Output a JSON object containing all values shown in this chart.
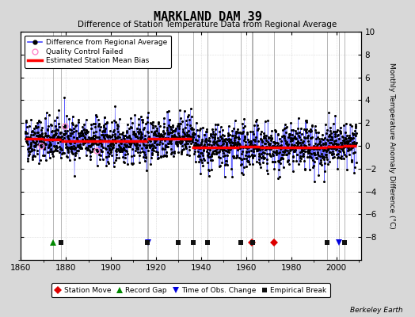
{
  "title": "MARKLAND DAM 39",
  "subtitle": "Difference of Station Temperature Data from Regional Average",
  "ylabel": "Monthly Temperature Anomaly Difference (°C)",
  "xlim": [
    1860,
    2011
  ],
  "ylim": [
    -10,
    10
  ],
  "yticks": [
    -8,
    -6,
    -4,
    -2,
    0,
    2,
    4,
    6,
    8,
    10
  ],
  "xticks": [
    1860,
    1880,
    1900,
    1920,
    1940,
    1960,
    1980,
    2000
  ],
  "background_color": "#d8d8d8",
  "plot_bg_color": "#ffffff",
  "line_color": "#4444ff",
  "marker_color": "#000000",
  "bias_color": "#ff0000",
  "qc_color": "#ff88cc",
  "seed": 42,
  "data_start": 1862.0,
  "data_end": 2009.0,
  "bias_segments": [
    {
      "x_start": 1862,
      "x_end": 1870,
      "bias": 0.65
    },
    {
      "x_start": 1870,
      "x_end": 1878,
      "bias": 0.55
    },
    {
      "x_start": 1878,
      "x_end": 1916,
      "bias": 0.45
    },
    {
      "x_start": 1916,
      "x_end": 1936,
      "bias": 0.65
    },
    {
      "x_start": 1936,
      "x_end": 1957,
      "bias": -0.15
    },
    {
      "x_start": 1957,
      "x_end": 1963,
      "bias": -0.1
    },
    {
      "x_start": 1963,
      "x_end": 1966,
      "bias": -0.1
    },
    {
      "x_start": 1966,
      "x_end": 1996,
      "bias": -0.15
    },
    {
      "x_start": 1996,
      "x_end": 2003,
      "bias": -0.05
    },
    {
      "x_start": 2003,
      "x_end": 2009,
      "bias": 0.0
    }
  ],
  "station_moves": [
    1962.5,
    1972.5
  ],
  "record_gaps": [
    1874.5
  ],
  "tobs_changes": [
    1916.5,
    2001.3
  ],
  "empirical_breaks": [
    1878.0,
    1916.0,
    1930.0,
    1936.5,
    1943.0,
    1957.5,
    1963.0,
    1996.0,
    2003.5
  ],
  "event_y": -8.5,
  "watermark": "Berkeley Earth",
  "noise_std": 0.95
}
